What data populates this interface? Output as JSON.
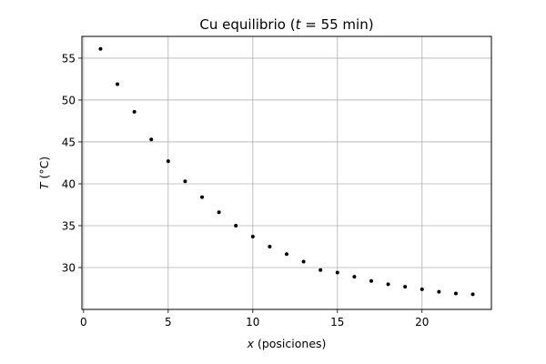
{
  "chart_data": {
    "type": "scatter",
    "title_prefix": "Cu equilibrio (",
    "title_var": "t",
    "title_suffix": " = 55 min)",
    "xlabel_var": "x",
    "xlabel_rest": " (posiciones)",
    "ylabel_var": "T",
    "ylabel_rest": " (°C)",
    "grid": true,
    "xlim": [
      -0.1,
      24.1
    ],
    "ylim": [
      25.0,
      57.6
    ],
    "xticks": [
      0,
      5,
      10,
      15,
      20
    ],
    "yticks": [
      30,
      35,
      40,
      45,
      50,
      55
    ],
    "marker_color": "#000000",
    "series": [
      {
        "name": "Cu",
        "x": [
          1,
          2,
          3,
          4,
          5,
          6,
          7,
          8,
          9,
          10,
          11,
          12,
          13,
          14,
          15,
          16,
          17,
          18,
          19,
          20,
          21,
          22,
          23
        ],
        "y": [
          56.1,
          51.9,
          48.6,
          45.3,
          42.7,
          40.3,
          38.4,
          36.6,
          35.0,
          33.7,
          32.5,
          31.6,
          30.7,
          29.7,
          29.4,
          28.9,
          28.4,
          28.0,
          27.7,
          27.4,
          27.1,
          26.9,
          26.8
        ]
      }
    ]
  }
}
